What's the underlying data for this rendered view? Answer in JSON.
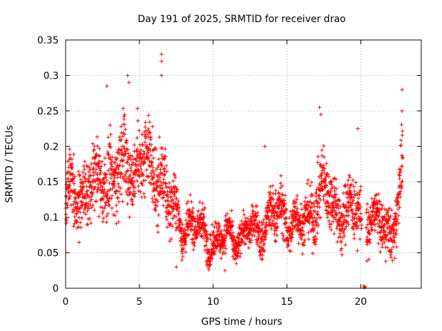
{
  "chart_data": {
    "type": "scatter",
    "title": "Day 191 of 2025, SRMTID for receiver drao",
    "xlabel": "GPS time / hours",
    "ylabel": "SRMTID / TECUs",
    "xlim": [
      0,
      24.1
    ],
    "ylim": [
      0,
      0.35
    ],
    "x_ticks": [
      0,
      5,
      10,
      15,
      20
    ],
    "x_tick_labels": [
      "0",
      "5",
      "10",
      "15",
      "20"
    ],
    "y_ticks": [
      0,
      0.05,
      0.1,
      0.15,
      0.2,
      0.25,
      0.3,
      0.35
    ],
    "y_tick_labels": [
      "0",
      "0.05",
      "0.1",
      "0.15",
      "0.2",
      "0.25",
      "0.3",
      "0.35"
    ],
    "grid": true,
    "marker": "plus",
    "series": [
      {
        "name": "SRMTID",
        "color": "#ff0000",
        "trend": {
          "x": [
            0,
            0.5,
            1,
            1.5,
            2,
            2.5,
            3,
            3.5,
            4,
            4.5,
            5,
            5.5,
            6,
            6.5,
            7,
            7.5,
            8,
            8.5,
            9,
            9.5,
            10,
            10.5,
            11,
            11.5,
            12,
            12.5,
            13,
            13.5,
            14,
            14.5,
            15,
            15.5,
            16,
            16.5,
            17,
            17.5,
            18,
            18.5,
            19,
            19.5,
            20,
            20.5,
            21,
            21.5,
            22,
            22.5,
            22.8
          ],
          "y": [
            0.12,
            0.14,
            0.13,
            0.14,
            0.15,
            0.15,
            0.16,
            0.16,
            0.18,
            0.17,
            0.18,
            0.17,
            0.16,
            0.16,
            0.12,
            0.1,
            0.09,
            0.09,
            0.08,
            0.075,
            0.07,
            0.065,
            0.07,
            0.075,
            0.075,
            0.08,
            0.08,
            0.095,
            0.1,
            0.105,
            0.1,
            0.095,
            0.085,
            0.1,
            0.13,
            0.14,
            0.12,
            0.11,
            0.11,
            0.11,
            0.1,
            0.1,
            0.09,
            0.085,
            0.08,
            0.12,
            0.16
          ]
        },
        "spread": [
          0.05,
          0.05,
          0.05,
          0.05,
          0.055,
          0.055,
          0.06,
          0.06,
          0.06,
          0.06,
          0.055,
          0.055,
          0.055,
          0.055,
          0.045,
          0.035,
          0.03,
          0.03,
          0.03,
          0.03,
          0.025,
          0.025,
          0.025,
          0.025,
          0.025,
          0.025,
          0.03,
          0.035,
          0.04,
          0.04,
          0.035,
          0.035,
          0.035,
          0.04,
          0.05,
          0.05,
          0.045,
          0.045,
          0.045,
          0.045,
          0.045,
          0.04,
          0.035,
          0.035,
          0.035,
          0.045,
          0.05
        ],
        "sample_count": 2600,
        "x_range": [
          0,
          22.85
        ],
        "notable_points": [
          {
            "x": 6.5,
            "y": 0.33
          },
          {
            "x": 6.5,
            "y": 0.32
          },
          {
            "x": 6.5,
            "y": 0.3
          },
          {
            "x": 4.2,
            "y": 0.3
          },
          {
            "x": 4.3,
            "y": 0.29
          },
          {
            "x": 2.8,
            "y": 0.285
          },
          {
            "x": 22.8,
            "y": 0.28
          },
          {
            "x": 17.2,
            "y": 0.255
          },
          {
            "x": 17.3,
            "y": 0.245
          },
          {
            "x": 22.8,
            "y": 0.25
          },
          {
            "x": 19.8,
            "y": 0.225
          },
          {
            "x": 13.5,
            "y": 0.2
          },
          {
            "x": 20.2,
            "y": 0.003
          },
          {
            "x": 20.25,
            "y": 0.001
          },
          {
            "x": 20.3,
            "y": 0.002
          },
          {
            "x": 10.8,
            "y": 0.025
          },
          {
            "x": 7.5,
            "y": 0.03
          },
          {
            "x": 21.7,
            "y": 0.038
          }
        ]
      }
    ]
  }
}
